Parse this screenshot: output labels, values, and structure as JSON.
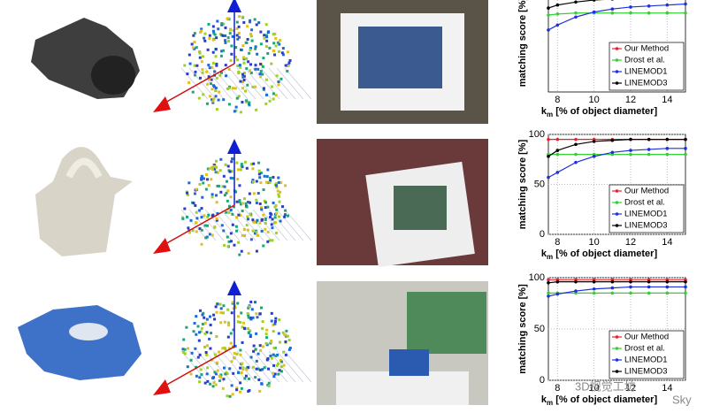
{
  "chart_data": [
    {
      "type": "line",
      "ylabel": "matching score [%]",
      "xlabel": [
        "k",
        "m",
        " [% of object diameter]"
      ],
      "x": [
        7.5,
        8,
        9,
        10,
        11,
        12,
        13,
        14,
        15
      ],
      "xlim": [
        7.5,
        15
      ],
      "xticks": [
        8,
        10,
        12,
        14
      ],
      "ylim": [
        0,
        100
      ],
      "yticks": [],
      "grid": true,
      "legend": "lower right",
      "series": [
        {
          "name": "Our Method",
          "color": "#e8202a",
          "values": [
            97,
            97,
            97,
            97,
            97,
            97,
            97,
            97,
            97
          ]
        },
        {
          "name": "Drost et al.",
          "color": "#35d035",
          "values": [
            77,
            78,
            79,
            79,
            79,
            79,
            79,
            79,
            79
          ]
        },
        {
          "name": "LINEMOD1",
          "color": "#1e2ee0",
          "values": [
            62,
            67,
            75,
            80,
            83,
            85,
            86,
            87,
            88
          ]
        },
        {
          "name": "LINEMOD3",
          "color": "#000000",
          "values": [
            84,
            87,
            90,
            92,
            93,
            94,
            94,
            95,
            95
          ]
        }
      ]
    },
    {
      "type": "line",
      "ylabel": "matching score [%]",
      "xlabel": [
        "k",
        "m",
        " [% of object diameter]"
      ],
      "x": [
        7.5,
        8,
        9,
        10,
        11,
        12,
        13,
        14,
        15
      ],
      "xlim": [
        7.5,
        15
      ],
      "xticks": [
        8,
        10,
        12,
        14
      ],
      "ylim": [
        0,
        100
      ],
      "yticks": [
        0,
        50,
        100
      ],
      "grid": true,
      "legend": "lower right",
      "series": [
        {
          "name": "Our Method",
          "color": "#e8202a",
          "values": [
            95,
            95,
            95,
            95,
            95,
            95,
            95,
            95,
            95
          ]
        },
        {
          "name": "Drost et al.",
          "color": "#35d035",
          "values": [
            80,
            80,
            80,
            80,
            80,
            80,
            80,
            80,
            80
          ]
        },
        {
          "name": "LINEMOD1",
          "color": "#1e2ee0",
          "values": [
            57,
            62,
            72,
            78,
            82,
            84,
            85,
            86,
            86
          ]
        },
        {
          "name": "LINEMOD3",
          "color": "#000000",
          "values": [
            78,
            84,
            90,
            93,
            94,
            95,
            95,
            95,
            95
          ]
        }
      ]
    },
    {
      "type": "line",
      "ylabel": "matching score [%]",
      "xlabel": [
        "k",
        "m",
        " [% of object diameter]"
      ],
      "x": [
        7.5,
        8,
        9,
        10,
        11,
        12,
        13,
        14,
        15
      ],
      "xlim": [
        7.5,
        15
      ],
      "xticks": [
        8,
        10,
        12,
        14
      ],
      "ylim": [
        0,
        100
      ],
      "yticks": [
        0,
        50,
        100
      ],
      "grid": true,
      "legend": "lower right",
      "series": [
        {
          "name": "Our Method",
          "color": "#e8202a",
          "values": [
            98,
            98,
            98,
            98,
            98,
            98,
            98,
            98,
            98
          ]
        },
        {
          "name": "Drost et al.",
          "color": "#35d035",
          "values": [
            85,
            85,
            85,
            85,
            85,
            85,
            85,
            85,
            85
          ]
        },
        {
          "name": "LINEMOD1",
          "color": "#1e2ee0",
          "values": [
            82,
            84,
            87,
            89,
            90,
            91,
            91,
            91,
            91
          ]
        },
        {
          "name": "LINEMOD3",
          "color": "#000000",
          "values": [
            95,
            96,
            96,
            96,
            96,
            96,
            96,
            96,
            96
          ]
        }
      ]
    }
  ],
  "watermark": [
    "3D视觉工坊",
    "Sky"
  ]
}
